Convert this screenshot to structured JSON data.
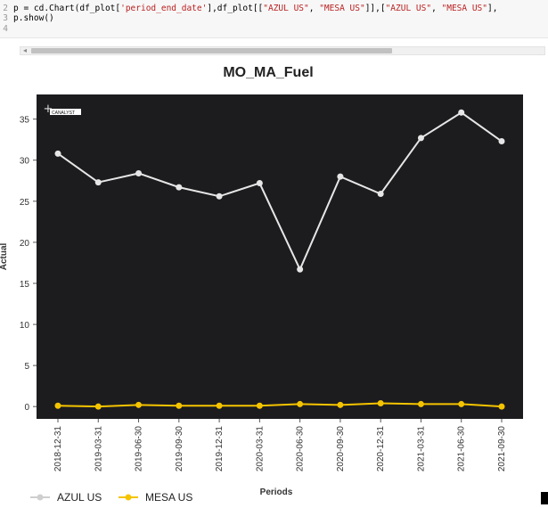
{
  "code": {
    "lines": [
      {
        "num": "2",
        "parts": [
          "p = cd.Chart(df_plot[",
          "'period_end_date'",
          "],df_plot[[",
          "\"AZUL US\"",
          ", ",
          "\"MESA US\"",
          "]],[",
          "\"AZUL US\"",
          ", ",
          "\"MESA US\"",
          "],"
        ]
      },
      {
        "num": "3",
        "parts": [
          "p.show()"
        ]
      },
      {
        "num": "4",
        "parts": [
          ""
        ]
      }
    ],
    "scroll_left_glyph": "◂"
  },
  "chart_data": {
    "type": "line",
    "title": "MO_MA_Fuel",
    "xlabel": "Periods",
    "ylabel": "Actual",
    "watermark": "CANALYST",
    "watermark_mark": "+",
    "categories": [
      "2018-12-31",
      "2019-03-31",
      "2019-06-30",
      "2019-09-30",
      "2019-12-31",
      "2020-03-31",
      "2020-06-30",
      "2020-09-30",
      "2020-12-31",
      "2021-03-31",
      "2021-06-30",
      "2021-09-30"
    ],
    "ylim": [
      -1.5,
      38
    ],
    "yticks": [
      0,
      5,
      10,
      15,
      20,
      25,
      30,
      35
    ],
    "grid": false,
    "legend_position": "bottom-left",
    "series": [
      {
        "name": "AZUL US",
        "color": "#e6e6e6",
        "values": [
          30.8,
          27.3,
          28.4,
          26.7,
          25.6,
          27.2,
          16.7,
          28.0,
          25.9,
          32.7,
          35.8,
          32.3
        ]
      },
      {
        "name": "MESA US",
        "color": "#f5c400",
        "values": [
          0.1,
          0.0,
          0.2,
          0.1,
          0.1,
          0.1,
          0.3,
          0.2,
          0.4,
          0.3,
          0.3,
          0.0
        ]
      }
    ],
    "plot_background": "#1c1c1f"
  }
}
